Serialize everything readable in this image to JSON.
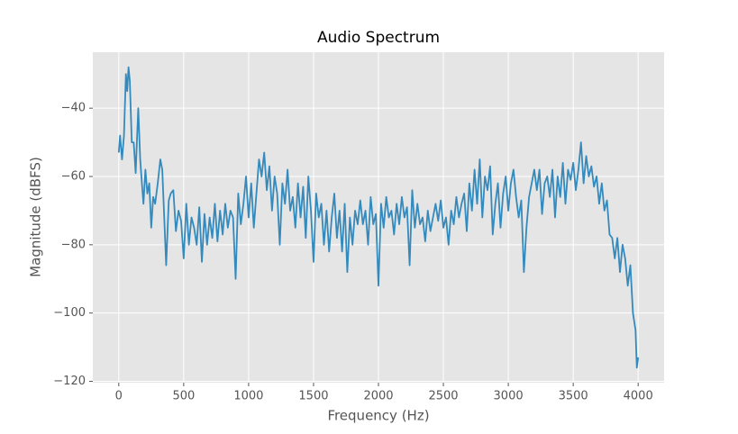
{
  "chart_data": {
    "type": "line",
    "title": "Audio Spectrum",
    "x_label": "Frequency (Hz)",
    "y_label": "Magnitude (dBFS)",
    "xlim": [
      -200,
      4200
    ],
    "ylim": [
      -120.4,
      -23.6
    ],
    "xticks": [
      0,
      500,
      1000,
      1500,
      2000,
      2500,
      3000,
      3500,
      4000
    ],
    "yticks": [
      {
        "value": -120,
        "label": "−120"
      },
      {
        "value": -100,
        "label": "−100"
      },
      {
        "value": -80,
        "label": "−80"
      },
      {
        "value": -60,
        "label": "−60"
      },
      {
        "value": -40,
        "label": "−40"
      }
    ],
    "grid": true,
    "x": [
      0,
      10,
      25,
      40,
      55,
      65,
      75,
      85,
      100,
      115,
      130,
      150,
      165,
      180,
      190,
      205,
      220,
      235,
      250,
      265,
      280,
      300,
      320,
      335,
      350,
      365,
      385,
      400,
      420,
      440,
      460,
      480,
      500,
      520,
      540,
      560,
      580,
      600,
      620,
      640,
      660,
      680,
      700,
      720,
      740,
      760,
      780,
      800,
      820,
      840,
      860,
      880,
      900,
      920,
      940,
      960,
      980,
      1000,
      1020,
      1040,
      1060,
      1080,
      1100,
      1120,
      1140,
      1160,
      1180,
      1200,
      1220,
      1240,
      1260,
      1280,
      1300,
      1320,
      1340,
      1360,
      1380,
      1400,
      1420,
      1440,
      1460,
      1480,
      1500,
      1520,
      1540,
      1560,
      1580,
      1600,
      1620,
      1640,
      1660,
      1680,
      1700,
      1720,
      1740,
      1760,
      1780,
      1800,
      1820,
      1840,
      1860,
      1880,
      1900,
      1920,
      1940,
      1960,
      1980,
      2000,
      2020,
      2040,
      2060,
      2080,
      2100,
      2120,
      2140,
      2160,
      2180,
      2200,
      2220,
      2240,
      2260,
      2280,
      2300,
      2320,
      2340,
      2360,
      2380,
      2400,
      2420,
      2440,
      2460,
      2480,
      2500,
      2520,
      2540,
      2560,
      2580,
      2600,
      2620,
      2640,
      2660,
      2680,
      2700,
      2720,
      2740,
      2760,
      2780,
      2800,
      2820,
      2840,
      2860,
      2880,
      2900,
      2920,
      2940,
      2960,
      2980,
      3000,
      3020,
      3040,
      3060,
      3080,
      3100,
      3120,
      3140,
      3160,
      3180,
      3200,
      3220,
      3240,
      3260,
      3280,
      3300,
      3320,
      3340,
      3360,
      3380,
      3400,
      3420,
      3440,
      3460,
      3480,
      3500,
      3520,
      3540,
      3560,
      3580,
      3600,
      3620,
      3640,
      3660,
      3680,
      3700,
      3720,
      3740,
      3760,
      3780,
      3800,
      3820,
      3840,
      3860,
      3880,
      3900,
      3920,
      3940,
      3960,
      3980,
      3990,
      4000
    ],
    "series": [
      {
        "color": "#348abd",
        "values": [
          -53,
          -48,
          -55,
          -48,
          -30,
          -35,
          -28,
          -32,
          -50,
          -50,
          -59,
          -40,
          -55,
          -63,
          -68,
          -58,
          -65,
          -62,
          -75,
          -66,
          -68,
          -62,
          -55,
          -58,
          -72,
          -86,
          -67,
          -65,
          -64,
          -76,
          -70,
          -73,
          -84,
          -68,
          -80,
          -72,
          -75,
          -80,
          -69,
          -85,
          -71,
          -80,
          -72,
          -78,
          -68,
          -79,
          -70,
          -77,
          -68,
          -75,
          -70,
          -72,
          -90,
          -65,
          -74,
          -68,
          -60,
          -72,
          -62,
          -75,
          -65,
          -55,
          -60,
          -53,
          -64,
          -57,
          -70,
          -60,
          -65,
          -80,
          -62,
          -68,
          -58,
          -70,
          -66,
          -75,
          -62,
          -72,
          -63,
          -78,
          -60,
          -70,
          -85,
          -65,
          -72,
          -68,
          -80,
          -70,
          -82,
          -72,
          -65,
          -78,
          -70,
          -82,
          -68,
          -88,
          -72,
          -80,
          -70,
          -74,
          -67,
          -74,
          -70,
          -80,
          -66,
          -74,
          -71,
          -92,
          -68,
          -75,
          -66,
          -72,
          -70,
          -77,
          -68,
          -74,
          -66,
          -72,
          -69,
          -86,
          -64,
          -75,
          -68,
          -74,
          -72,
          -79,
          -70,
          -76,
          -72,
          -68,
          -73,
          -67,
          -75,
          -72,
          -80,
          -70,
          -74,
          -66,
          -72,
          -68,
          -65,
          -76,
          -62,
          -70,
          -58,
          -68,
          -55,
          -72,
          -60,
          -64,
          -57,
          -77,
          -68,
          -62,
          -75,
          -65,
          -60,
          -70,
          -62,
          -58,
          -66,
          -72,
          -67,
          -88,
          -75,
          -66,
          -62,
          -58,
          -64,
          -58,
          -71,
          -62,
          -60,
          -66,
          -58,
          -72,
          -60,
          -66,
          -56,
          -68,
          -58,
          -61,
          -56,
          -64,
          -58,
          -50,
          -62,
          -54,
          -60,
          -57,
          -63,
          -60,
          -68,
          -62,
          -70,
          -67,
          -77,
          -78,
          -84,
          -78,
          -88,
          -80,
          -84,
          -92,
          -86,
          -100,
          -105,
          -116,
          -113
        ]
      }
    ]
  }
}
